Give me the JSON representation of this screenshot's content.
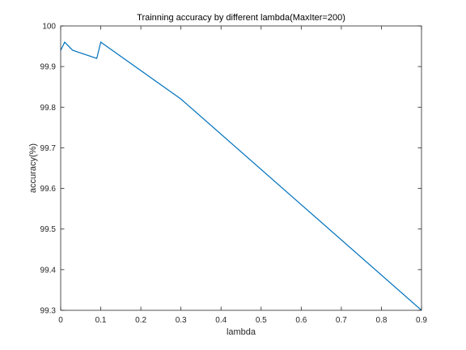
{
  "chart_data": {
    "type": "line",
    "title": "Trainning accuracy by different lambda(MaxIter=200)",
    "xlabel": "lambda",
    "ylabel": "accuracy(%)",
    "xlim": [
      0,
      0.9
    ],
    "ylim": [
      99.3,
      100
    ],
    "xticks": [
      0,
      0.1,
      0.2,
      0.3,
      0.4,
      0.5,
      0.6,
      0.7,
      0.8,
      0.9
    ],
    "xtick_labels": [
      "0",
      "0.1",
      "0.2",
      "0.3",
      "0.4",
      "0.5",
      "0.6",
      "0.7",
      "0.8",
      "0.9"
    ],
    "yticks": [
      99.3,
      99.4,
      99.5,
      99.6,
      99.7,
      99.8,
      99.9,
      100
    ],
    "ytick_labels": [
      "99.3",
      "99.4",
      "99.5",
      "99.6",
      "99.7",
      "99.8",
      "99.9",
      "100"
    ],
    "grid": false,
    "series": [
      {
        "color": "#0072BD",
        "x": [
          0,
          0.01,
          0.03,
          0.09,
          0.1,
          0.3,
          0.9
        ],
        "y": [
          99.94,
          99.96,
          99.94,
          99.92,
          99.96,
          99.82,
          99.3
        ]
      }
    ]
  },
  "colors": {
    "axes": "#262626",
    "background": "#ffffff",
    "line": "#0072BD"
  }
}
